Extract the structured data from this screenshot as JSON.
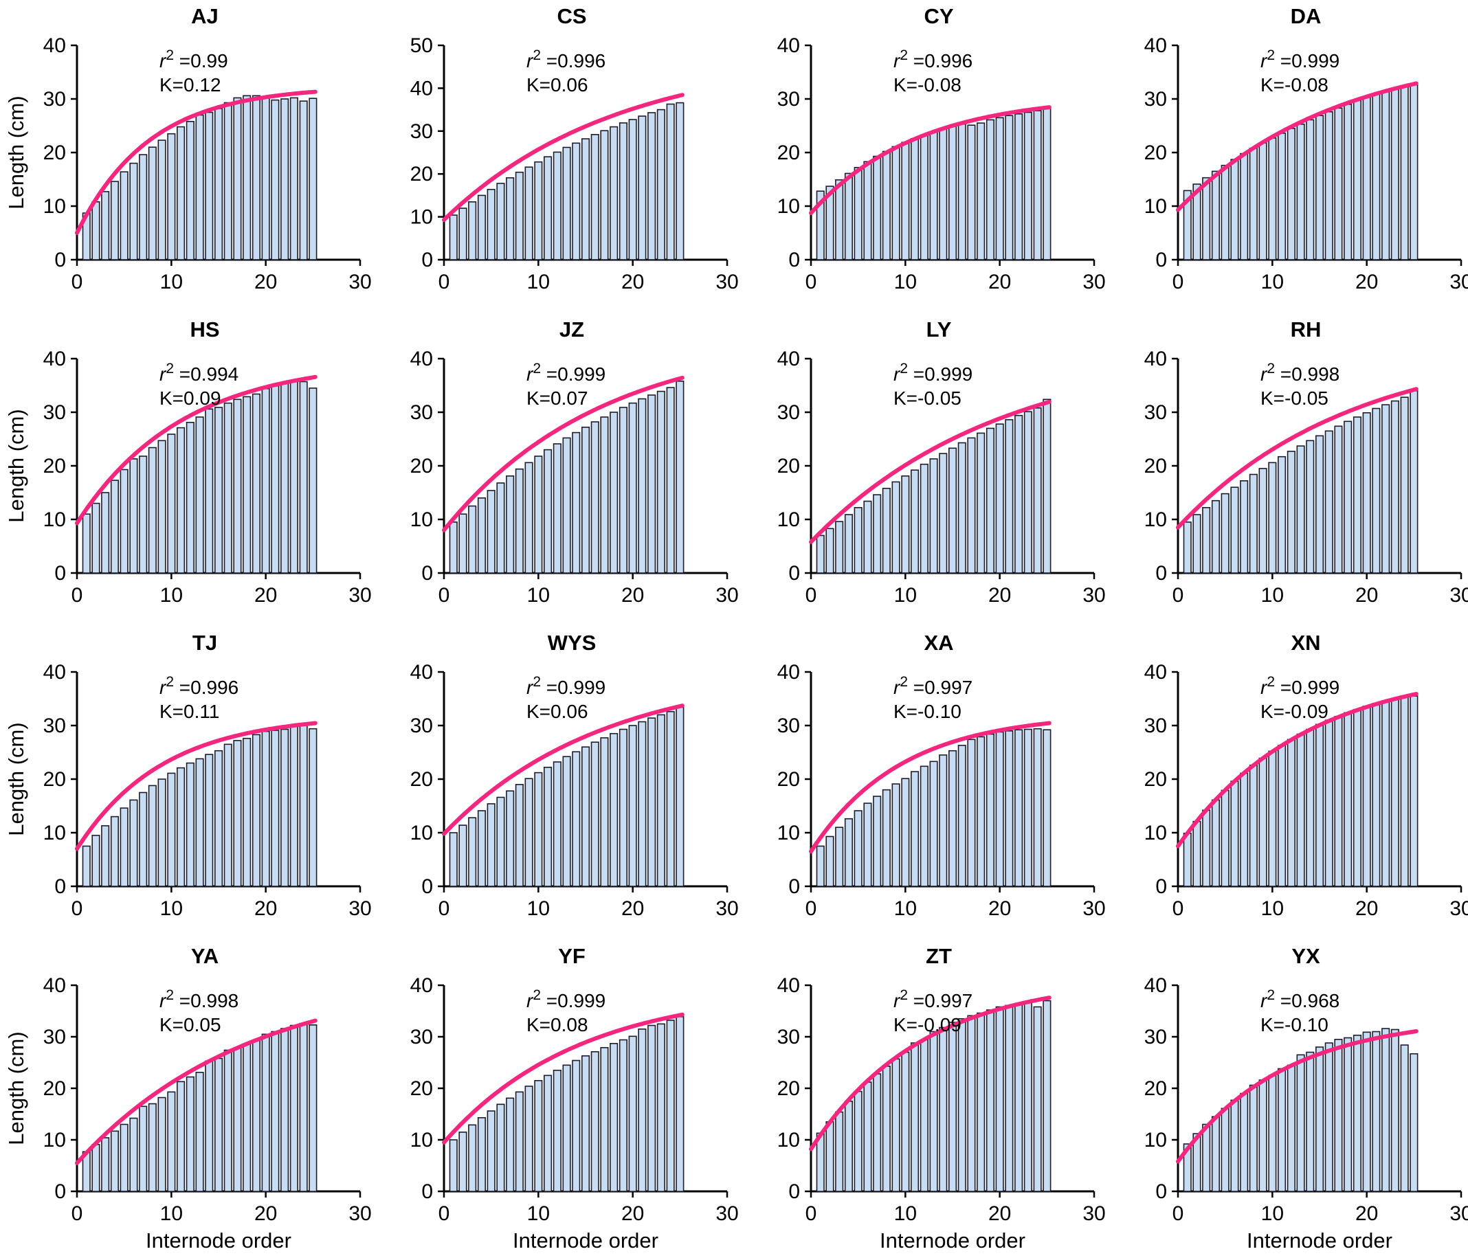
{
  "figure": {
    "description": "Grid of 16 bar charts of internode length vs internode order, each with a fitted growth curve and r-squared / K annotation"
  },
  "colors": {
    "bar_fill": "#c9ddf2",
    "bar_stroke": "#1c1c2e",
    "curve": "#f5267d",
    "annotation_text": "#2222cc",
    "axis": "#000000",
    "title_text": "#000000"
  },
  "chart_data": {
    "type": "bar",
    "xlabel": "Internode order",
    "ylabel": "Length (cm)",
    "xlim": [
      0,
      30
    ],
    "xticks": [
      0,
      10,
      20,
      30
    ],
    "x_start": 1,
    "x_step": 1,
    "legend": "none",
    "grid": "off",
    "panels": [
      {
        "title": "AJ",
        "r2": "0.99",
        "k": "0.12",
        "ymax": 40,
        "yticks": [
          0,
          10,
          20,
          30,
          40
        ],
        "values": [
          8.7,
          10.8,
          12.7,
          14.6,
          16.4,
          18,
          19.6,
          21,
          22.3,
          23.5,
          24.8,
          25.8,
          27,
          27.5,
          28.2,
          29.3,
          30.2,
          30.6,
          30.6,
          30.4,
          29.8,
          30,
          30.2,
          29.6,
          30.1
        ],
        "curve": {
          "y0": 5,
          "y25": 31.3,
          "rate": 0.13
        }
      },
      {
        "title": "CS",
        "r2": "0.996",
        "k": "0.06",
        "ymax": 50,
        "yticks": [
          0,
          10,
          20,
          30,
          40,
          50
        ],
        "values": [
          10.4,
          12,
          13.5,
          15,
          16.4,
          17.8,
          19.1,
          20.4,
          21.6,
          22.8,
          24,
          25.1,
          26.2,
          27.2,
          28.2,
          29.2,
          30.1,
          31,
          31.9,
          32.7,
          33.5,
          34.3,
          35,
          36.3,
          36.6
        ],
        "curve": {
          "y0": 9.3,
          "y25": 38.3,
          "rate": 0.055
        }
      },
      {
        "title": "CY",
        "r2": "0.996",
        "k": "-0.08",
        "ymax": 40,
        "yticks": [
          0,
          10,
          20,
          30,
          40
        ],
        "values": [
          12.8,
          13.7,
          14.9,
          16.1,
          17.2,
          18.3,
          19.3,
          20.2,
          21.1,
          21.9,
          22.6,
          23.3,
          23.9,
          24.5,
          25,
          25.3,
          25.1,
          25.5,
          26.1,
          26.5,
          26.9,
          27.2,
          27.5,
          27.8,
          28.2
        ],
        "curve": {
          "y0": 8.7,
          "y25": 28.4,
          "rate": 0.09
        }
      },
      {
        "title": "DA",
        "r2": "0.999",
        "k": "-0.08",
        "ymax": 40,
        "yticks": [
          0,
          10,
          20,
          30,
          40
        ],
        "values": [
          12.9,
          14.1,
          15.3,
          16.5,
          17.6,
          18.7,
          19.8,
          20.8,
          21.8,
          22.7,
          23.6,
          24.5,
          25.3,
          26.1,
          26.9,
          27.6,
          28.3,
          29,
          29.7,
          30.3,
          30.9,
          31.4,
          31.9,
          32.3,
          32.6
        ],
        "curve": {
          "y0": 9.3,
          "y25": 32.8,
          "rate": 0.06
        }
      },
      {
        "title": "HS",
        "r2": "0.994",
        "k": "0.09",
        "ymax": 40,
        "yticks": [
          0,
          10,
          20,
          30,
          40
        ],
        "values": [
          11,
          13,
          15,
          17.3,
          19.3,
          21.3,
          21.8,
          23.4,
          24.7,
          25.9,
          27.1,
          28.1,
          29.1,
          30.6,
          30.9,
          31.7,
          32.4,
          32.9,
          33.4,
          34.4,
          34.9,
          35.4,
          35.9,
          35.7,
          34.5
        ],
        "curve": {
          "y0": 9.3,
          "y25": 36.5,
          "rate": 0.09
        }
      },
      {
        "title": "JZ",
        "r2": "0.999",
        "k": "0.07",
        "ymax": 40,
        "yticks": [
          0,
          10,
          20,
          30,
          40
        ],
        "values": [
          9.5,
          11,
          12.5,
          14,
          15.4,
          16.8,
          18.1,
          19.4,
          20.6,
          21.8,
          23,
          24.1,
          25.2,
          26.2,
          27.2,
          28.2,
          29.1,
          30,
          30.9,
          31.7,
          32.5,
          33.2,
          33.9,
          34.6,
          35.8
        ],
        "curve": {
          "y0": 8,
          "y25": 36.3,
          "rate": 0.06
        }
      },
      {
        "title": "LY",
        "r2": "0.999",
        "k": "-0.05",
        "ymax": 40,
        "yticks": [
          0,
          10,
          20,
          30,
          40
        ],
        "values": [
          7,
          8.3,
          9.6,
          10.9,
          12.2,
          13.4,
          14.6,
          15.8,
          17,
          18.1,
          19.2,
          20.3,
          21.3,
          22.3,
          23.3,
          24.3,
          25.2,
          26.1,
          27,
          27.8,
          28.6,
          29.4,
          30.1,
          30.8,
          32.4
        ],
        "curve": {
          "y0": 5.8,
          "y25": 31.8,
          "rate": 0.05
        }
      },
      {
        "title": "RH",
        "r2": "0.998",
        "k": "-0.05",
        "ymax": 40,
        "yticks": [
          0,
          10,
          20,
          30,
          40
        ],
        "values": [
          9.5,
          10.9,
          12.2,
          13.5,
          14.8,
          16,
          17.2,
          18.4,
          19.5,
          20.6,
          21.7,
          22.7,
          23.7,
          24.7,
          25.6,
          26.5,
          27.4,
          28.3,
          29.1,
          29.9,
          30.7,
          31.4,
          32.1,
          32.8,
          34
        ],
        "curve": {
          "y0": 8.5,
          "y25": 34.2,
          "rate": 0.055
        }
      },
      {
        "title": "TJ",
        "r2": "0.996",
        "k": "0.11",
        "ymax": 40,
        "yticks": [
          0,
          10,
          20,
          30,
          40
        ],
        "values": [
          7.5,
          9.5,
          11.3,
          13,
          14.6,
          16.1,
          17.5,
          18.8,
          20,
          21.1,
          22.1,
          23,
          23.8,
          24.6,
          25.3,
          26.5,
          27.2,
          27.6,
          28.3,
          28.9,
          29.1,
          29.3,
          30,
          30.2,
          29.4
        ],
        "curve": {
          "y0": 7,
          "y25": 30.4,
          "rate": 0.11
        }
      },
      {
        "title": "WYS",
        "r2": "0.999",
        "k": "0.06",
        "ymax": 40,
        "yticks": [
          0,
          10,
          20,
          30,
          40
        ],
        "values": [
          10,
          11.4,
          12.8,
          14.1,
          15.4,
          16.6,
          17.8,
          19,
          20.1,
          21.2,
          22.2,
          23.2,
          24.2,
          25.1,
          26,
          26.9,
          27.7,
          28.5,
          29.3,
          30,
          30.7,
          31.4,
          32,
          32.6,
          33.4
        ],
        "curve": {
          "y0": 9.8,
          "y25": 33.6,
          "rate": 0.06
        }
      },
      {
        "title": "XA",
        "r2": "0.997",
        "k": "-0.10",
        "ymax": 40,
        "yticks": [
          0,
          10,
          20,
          30,
          40
        ],
        "values": [
          7.5,
          9.3,
          11,
          12.6,
          14.1,
          15.5,
          16.8,
          18,
          19.1,
          20.1,
          21.4,
          22.4,
          23.3,
          24.5,
          25.3,
          26.3,
          27.4,
          27.9,
          28.4,
          28.8,
          29,
          29.2,
          29.3,
          29.4,
          29.2
        ],
        "curve": {
          "y0": 6.5,
          "y25": 30.4,
          "rate": 0.105
        }
      },
      {
        "title": "XN",
        "r2": "0.999",
        "k": "-0.09",
        "ymax": 40,
        "yticks": [
          0,
          10,
          20,
          30,
          40
        ],
        "values": [
          9.9,
          12.1,
          14.2,
          16.1,
          17.9,
          19.6,
          21.1,
          22.6,
          23.9,
          25.2,
          26.3,
          27.4,
          28.4,
          29.3,
          30.2,
          31,
          31.7,
          32.4,
          33,
          33.6,
          34.1,
          34.6,
          35,
          35.4,
          35.5
        ],
        "curve": {
          "y0": 7.5,
          "y25": 35.8,
          "rate": 0.075
        }
      },
      {
        "title": "YA",
        "r2": "0.998",
        "k": "0.05",
        "ymax": 40,
        "yticks": [
          0,
          10,
          20,
          30,
          40
        ],
        "values": [
          7.7,
          9.1,
          10.4,
          11.7,
          13,
          14.2,
          16.5,
          17,
          18.2,
          19.3,
          21.3,
          22.2,
          23.1,
          25.3,
          25.8,
          27.4,
          27.8,
          28.6,
          29.3,
          30.5,
          31,
          31.6,
          32.2,
          32.6,
          32.3
        ],
        "curve": {
          "y0": 5.5,
          "y25": 33,
          "rate": 0.055
        }
      },
      {
        "title": "YF",
        "r2": "0.999",
        "k": "0.08",
        "ymax": 40,
        "yticks": [
          0,
          10,
          20,
          30,
          40
        ],
        "values": [
          10,
          11.5,
          12.9,
          14.3,
          15.6,
          16.9,
          18.1,
          19.3,
          20.4,
          21.5,
          22.5,
          23.5,
          24.5,
          25.4,
          26.3,
          27.1,
          27.9,
          28.7,
          29.4,
          30.1,
          31.5,
          32.2,
          32.5,
          33.2,
          33.9
        ],
        "curve": {
          "y0": 9.5,
          "y25": 34.2,
          "rate": 0.07
        }
      },
      {
        "title": "ZT",
        "r2": "0.997",
        "k": "-0.09",
        "ymax": 40,
        "yticks": [
          0,
          10,
          20,
          30,
          40
        ],
        "values": [
          11.3,
          13.5,
          15.4,
          17.5,
          19.4,
          21.2,
          22.8,
          24.3,
          25.7,
          27,
          28.8,
          29.4,
          31,
          31.8,
          32.8,
          33.5,
          34.1,
          34.6,
          35.2,
          35.8,
          36.1,
          36.5,
          36.8,
          35.8,
          37
        ],
        "curve": {
          "y0": 8.2,
          "y25": 37.5,
          "rate": 0.085
        }
      },
      {
        "title": "YX",
        "r2": "0.968",
        "k": "-0.10",
        "ymax": 40,
        "yticks": [
          0,
          10,
          20,
          30,
          40
        ],
        "values": [
          9.2,
          11.2,
          13,
          14.5,
          16.1,
          17.7,
          19,
          20.6,
          21.6,
          22.5,
          23.8,
          24.5,
          26.5,
          27,
          28,
          28.8,
          29.5,
          29.8,
          30.3,
          30.9,
          31,
          31.6,
          31.4,
          28.4,
          26.7
        ],
        "curve": {
          "y0": 5.8,
          "y25": 31,
          "rate": 0.09
        }
      }
    ]
  }
}
